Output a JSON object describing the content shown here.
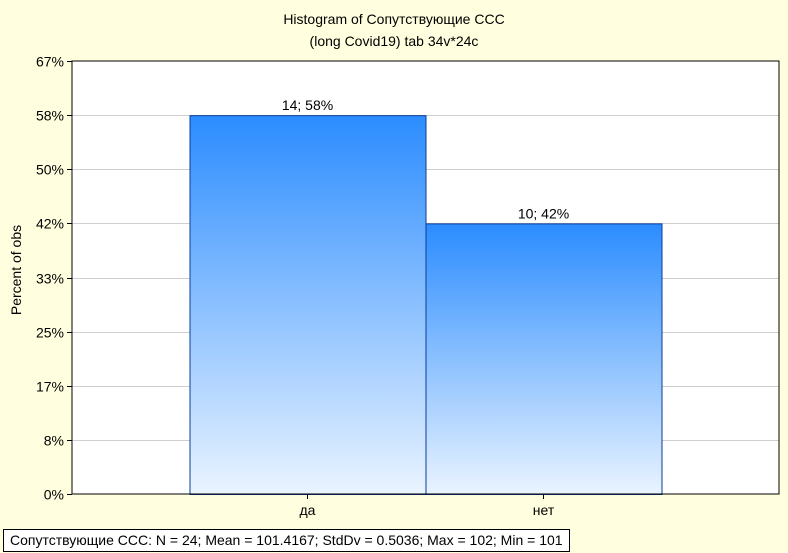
{
  "chart_data": {
    "type": "bar",
    "title": "Histogram of Сопутствующие ССС",
    "subtitle": "(long Covid19) tab 34v*24c",
    "xlabel": "",
    "ylabel": "Percent of obs",
    "categories": [
      "да",
      "нет"
    ],
    "series": [
      {
        "values": [
          58.33,
          41.67
        ]
      }
    ],
    "counts": [
      14,
      10
    ],
    "data_labels": [
      "14; 58%",
      "10; 42%"
    ],
    "y_ticks": [
      "0%",
      "8%",
      "17%",
      "25%",
      "33%",
      "42%",
      "50%",
      "58%",
      "67%"
    ],
    "ylim": [
      0,
      66.67
    ],
    "grid": true,
    "stats_line": "Сопутствующие ССС:   N = 24; Mean = 101.4167; StdDv = 0.5036; Max = 102; Min = 101",
    "colors": {
      "bar_top": "#2b8cff",
      "bar_bottom": "#eaf4ff",
      "bar_border": "#0a3d99",
      "plot_bg": "#ffffff",
      "page_bg": "#ffffdf"
    }
  }
}
